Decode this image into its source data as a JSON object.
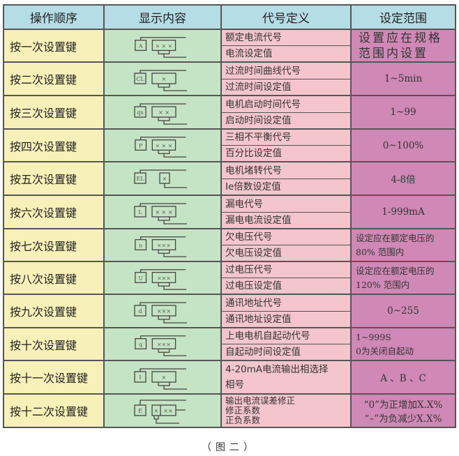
{
  "headers": [
    "操作顺序",
    "显示内容",
    "代号定义",
    "设定范围"
  ],
  "rows": [
    {
      "step": "按一次设置键",
      "icon": {
        "type": "std",
        "code": "A",
        "digits": "× × ×"
      },
      "defs": [
        "额定电流代号",
        "电流设定值"
      ],
      "range": "设置应在规格范围内设置",
      "range_style": "big"
    },
    {
      "step": "按二次设置键",
      "icon": {
        "type": "std",
        "code": "CL",
        "digits": "×"
      },
      "defs": [
        "过流时间曲线代号",
        "过流时间设定值"
      ],
      "range": "1~5min"
    },
    {
      "step": "按三次设置键",
      "icon": {
        "type": "std",
        "code": "qs",
        "digits": "× ×"
      },
      "defs": [
        "电机启动时间代号",
        "启动时间设定值"
      ],
      "range": "1~99"
    },
    {
      "step": "按四次设置键",
      "icon": {
        "type": "std",
        "code": "P",
        "digits": "× × ×"
      },
      "defs": [
        "三相不平衡代号",
        "百分比设定值"
      ],
      "range": "0~100%"
    },
    {
      "step": "按五次设置键",
      "icon": {
        "type": "small",
        "code": "EL",
        "digits": "×"
      },
      "defs": [
        "电机堵转代号",
        "Ie倍数设定值"
      ],
      "range": "4-8倍"
    },
    {
      "step": "按六次设置键",
      "icon": {
        "type": "std",
        "code": "L",
        "digits": "× × ×"
      },
      "defs": [
        "漏电代号",
        "漏电电流设定值"
      ],
      "range": "1-999mA"
    },
    {
      "step": "按七次设置键",
      "icon": {
        "type": "std",
        "code": "n",
        "digits": "×××"
      },
      "defs": [
        "欠电压代号",
        "欠电压设定值"
      ],
      "range": "设定应在额定电压的\n80% 范围内",
      "range_style": "left"
    },
    {
      "step": "按八次设置键",
      "icon": {
        "type": "std",
        "code": "U",
        "digits": "×××"
      },
      "defs": [
        "过电压代号",
        "过电压设定值"
      ],
      "range": "设定应在额定电压的\n120% 范围内",
      "range_style": "left"
    },
    {
      "step": "按九次设置键",
      "icon": {
        "type": "std",
        "code": "d",
        "digits": "×××"
      },
      "defs": [
        "通讯地址代号",
        "通讯地址设定值"
      ],
      "range": "0~255"
    },
    {
      "step": "按十次设置键",
      "icon": {
        "type": "std",
        "code": "q",
        "digits": "×××"
      },
      "defs": [
        "上电电机自起动代号",
        "自起动时间设定值"
      ],
      "range": "1~999S\n0为关闭自起动",
      "range_style": "left"
    },
    {
      "step": "按十一次设置键",
      "icon": {
        "type": "std",
        "code": "I",
        "digits": "×"
      },
      "defs": [
        "4-20mA电流输出相选择",
        "相号"
      ],
      "defs_noborder": true,
      "range": "A 、B 、C"
    },
    {
      "step": "按十二次设置键",
      "icon": {
        "type": "split",
        "code": "E",
        "digits": "×",
        "digits2": "××"
      },
      "defs": [
        "输出电流误差修正",
        "修正系数",
        "正负系数"
      ],
      "defs_tight": true,
      "range": "“0”为正增加X.X%\n“–”为负减少X.X%"
    }
  ],
  "caption": "（图二）",
  "colors": {
    "header": "#b5dde6",
    "step": "#f7f0b8",
    "display": "#c5e4c5",
    "definition": "#f4c5cd",
    "range": "#d088b6"
  }
}
